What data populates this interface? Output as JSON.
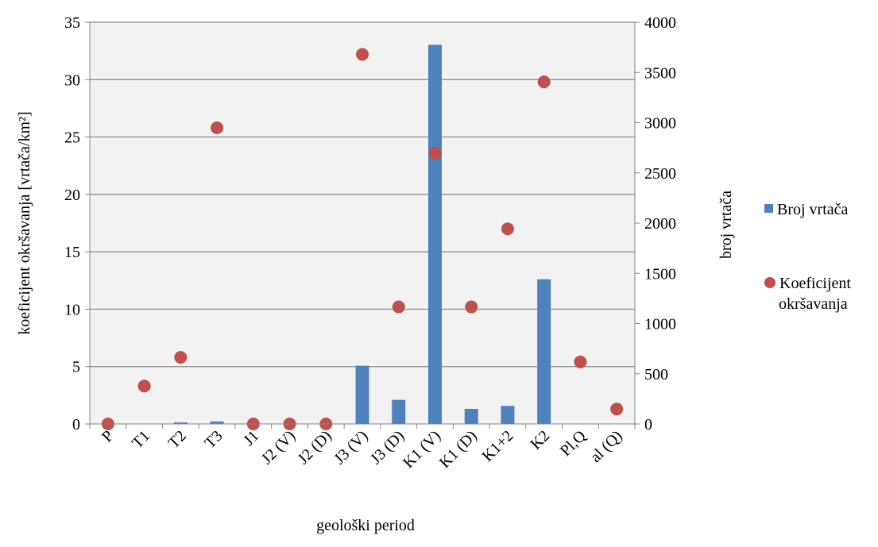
{
  "chart_data": {
    "type": "bar",
    "categories": [
      "P",
      "T1",
      "T2",
      "T3",
      "J1",
      "J2 (V)",
      "J2 (D)",
      "J3 (V)",
      "J3 (D)",
      "K1 (V)",
      "K1 (D)",
      "K1+2",
      "K2",
      "Pl,Q",
      "al (Q)"
    ],
    "series": [
      {
        "name": "Broj vrtača",
        "type": "bar",
        "axis": "right",
        "color": "#4F81BD",
        "values": [
          0,
          0,
          15,
          25,
          0,
          0,
          0,
          580,
          240,
          3775,
          150,
          180,
          1440,
          0,
          0
        ]
      },
      {
        "name": "Koeficijent okršavanja",
        "type": "scatter",
        "axis": "left",
        "color": "#C0504D",
        "values": [
          0,
          3.3,
          5.8,
          25.8,
          0,
          0,
          0,
          32.2,
          10.2,
          23.6,
          10.2,
          17.0,
          29.8,
          5.4,
          1.3
        ]
      }
    ],
    "xlabel": "geološki period",
    "ylabel": "koeficijent okršavanja [vrtača/km²]",
    "y2label": "broj vrtača",
    "ylim": [
      0,
      35
    ],
    "y2lim": [
      0,
      4000
    ],
    "yticks": [
      "0",
      "5",
      "10",
      "15",
      "20",
      "25",
      "30",
      "35"
    ],
    "y2ticks": [
      "0",
      "500",
      "1000",
      "1500",
      "2000",
      "2500",
      "3000",
      "3500",
      "4000"
    ],
    "grid": true,
    "legend_position": "right"
  }
}
